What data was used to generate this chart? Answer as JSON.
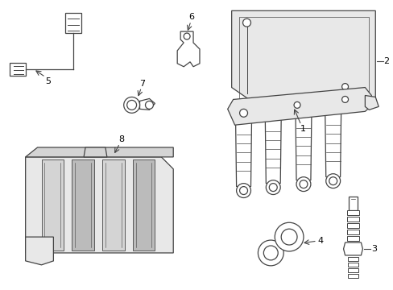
{
  "bg_color": "#ffffff",
  "lc": "#444444",
  "lw": 0.9
}
